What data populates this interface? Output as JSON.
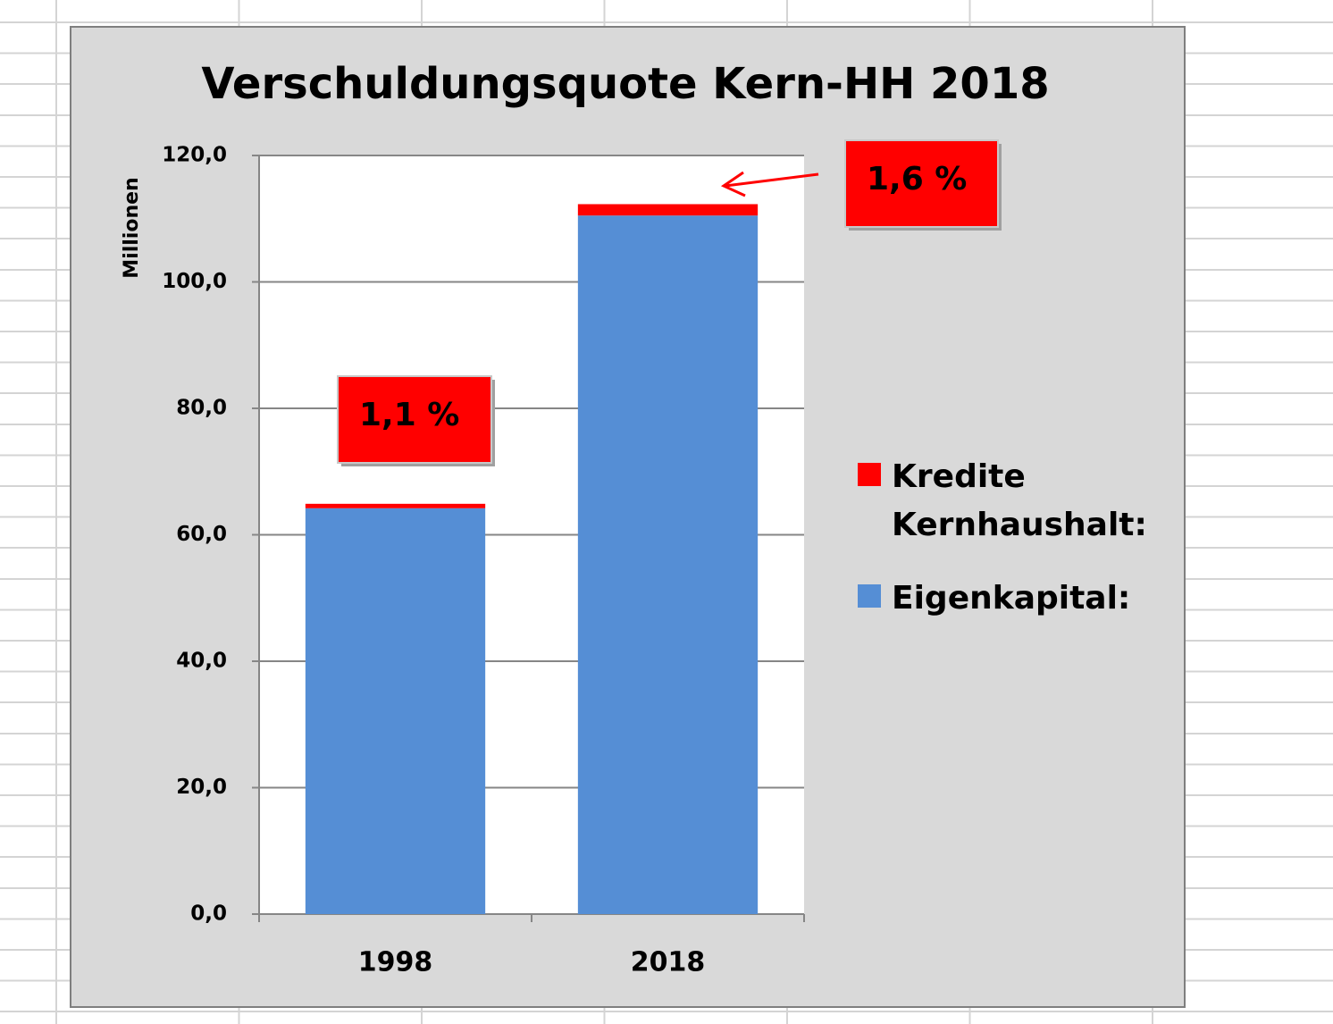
{
  "chart_data": {
    "type": "stacked_bar",
    "title": "Verschuldungsquote Kern-HH 2018",
    "y_label": "Millionen",
    "categories": [
      "1998",
      "2018"
    ],
    "series": [
      {
        "name": "Eigenkapital:",
        "color": "#558ed5",
        "values": [
          64.2,
          110.5
        ]
      },
      {
        "name": "Kredite Kernhaushalt:",
        "color": "#ff0000",
        "values": [
          0.7,
          1.8
        ]
      }
    ],
    "ylim": [
      0,
      120
    ],
    "yticks": [
      {
        "value": 0,
        "label": "0,0"
      },
      {
        "value": 20,
        "label": "20,0"
      },
      {
        "value": 40,
        "label": "40,0"
      },
      {
        "value": 60,
        "label": "60,0"
      },
      {
        "value": 80,
        "label": "80,0"
      },
      {
        "value": 100,
        "label": "100,0"
      },
      {
        "value": 120,
        "label": "120,0"
      }
    ],
    "grid": true,
    "legend": "right",
    "annotations": [
      {
        "text": "1,1 %"
      },
      {
        "text": "1,6 %"
      }
    ]
  }
}
